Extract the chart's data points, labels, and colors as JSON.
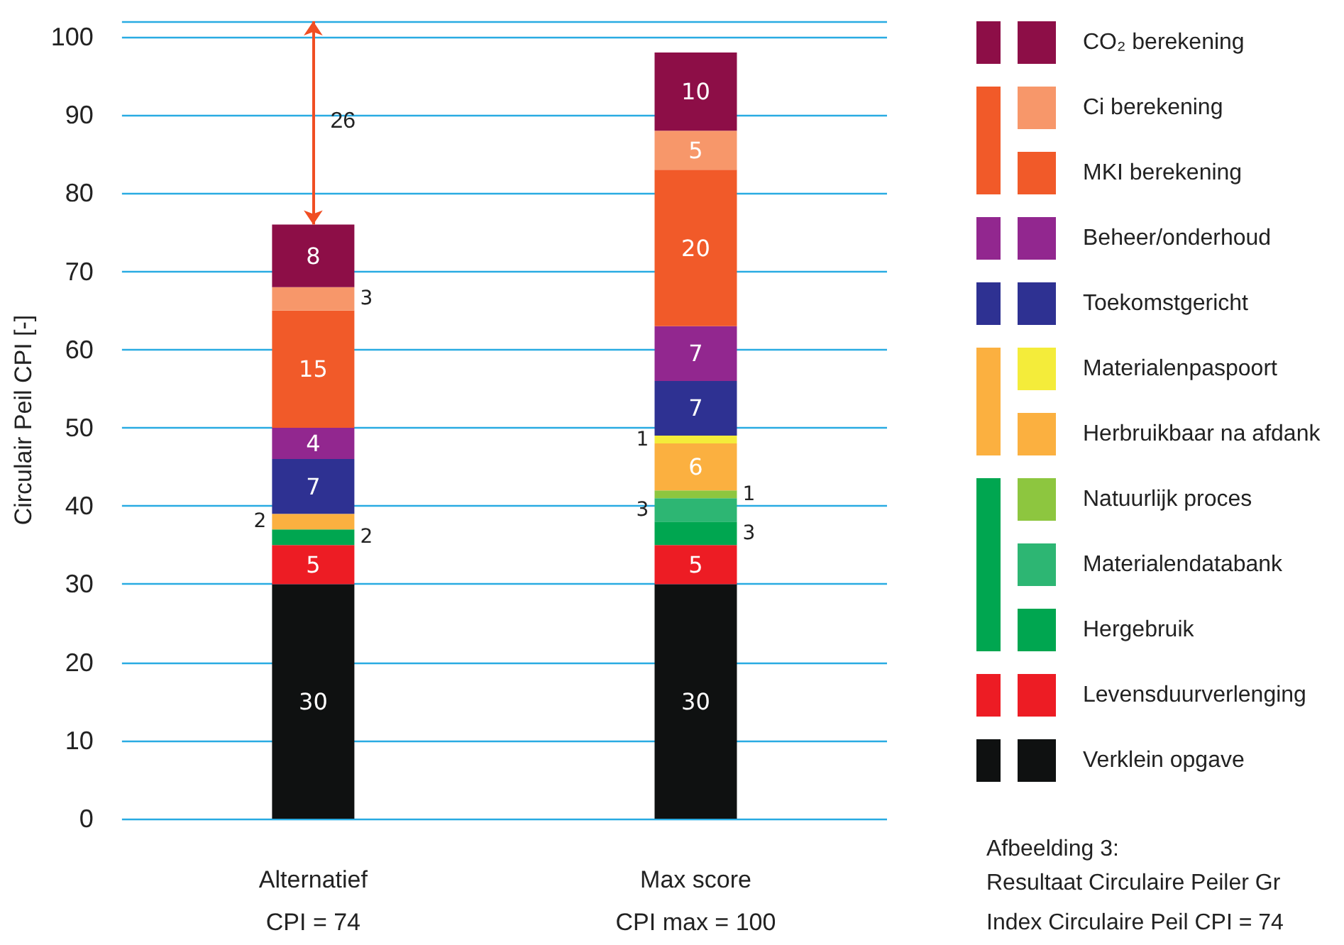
{
  "chart_data": {
    "type": "bar",
    "stacked": true,
    "ylabel": "Circulair Peil CPI [-]",
    "categories": [
      "Alternatief\nCPI = 74",
      "Max score\nCPI max = 100"
    ],
    "series": [
      {
        "name": "Verklein opgave",
        "color": "#0f1111",
        "values": [
          30,
          30
        ]
      },
      {
        "name": "Levensduurverlenging",
        "color": "#ed1c24",
        "values": [
          5,
          5
        ]
      },
      {
        "name": "Hergebruik",
        "color": "#00a650",
        "values": [
          2,
          3
        ]
      },
      {
        "name": "Materialendatabank",
        "color": "#2db673",
        "values": [
          null,
          3
        ]
      },
      {
        "name": "Natuurlijk proces",
        "color": "#8dc63f",
        "values": [
          null,
          1
        ]
      },
      {
        "name": "Herbruikbaar na afdank",
        "color": "#fbb040",
        "values": [
          2,
          6
        ]
      },
      {
        "name": "Materialenpaspoort",
        "color": "#f4ec3a",
        "values": [
          null,
          1
        ]
      },
      {
        "name": "Toekomstgericht",
        "color": "#2e3192",
        "values": [
          7,
          7
        ]
      },
      {
        "name": "Beheer/onderhoud",
        "color": "#92278f",
        "values": [
          4,
          7
        ]
      },
      {
        "name": "MKI berekening",
        "color": "#f15a29",
        "values": [
          15,
          20
        ]
      },
      {
        "name": "Ci berekening",
        "color": "#f7976a",
        "values": [
          3,
          5
        ]
      },
      {
        "name": "CO₂ berekening",
        "color": "#8d0e47",
        "values": [
          8,
          10
        ]
      }
    ],
    "ylim": [
      0,
      102
    ],
    "yticks": [
      0,
      10,
      20,
      30,
      40,
      50,
      60,
      70,
      80,
      90,
      100
    ],
    "grid": "y",
    "legend": "right",
    "data_labels": true,
    "annotations": [
      "26",
      "Afbeelding 3:",
      "Resultaat Circulaire Peiler Gr",
      "Index Circulaire Peil CPI = 74"
    ]
  }
}
